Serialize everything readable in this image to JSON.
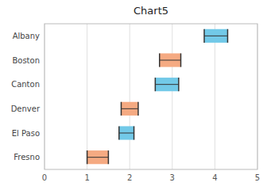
{
  "chart_data": {
    "type": "range",
    "orientation": "horizontal",
    "title": "Chart5",
    "categories": [
      "Albany",
      "Boston",
      "Canton",
      "Denver",
      "El Paso",
      "Fresno"
    ],
    "series": [
      {
        "color": "#72c9e8",
        "low": [
          3.75,
          null,
          2.6,
          null,
          1.75,
          null
        ],
        "high": [
          4.3,
          null,
          3.15,
          null,
          2.1,
          null
        ]
      },
      {
        "color": "#f5aa82",
        "low": [
          null,
          2.7,
          null,
          1.8,
          null,
          1.0
        ],
        "high": [
          null,
          3.2,
          null,
          2.2,
          null,
          1.5
        ]
      }
    ],
    "xlim": [
      0,
      5
    ],
    "xticks": [
      0,
      1,
      2,
      3,
      4,
      5
    ],
    "grid": true
  }
}
